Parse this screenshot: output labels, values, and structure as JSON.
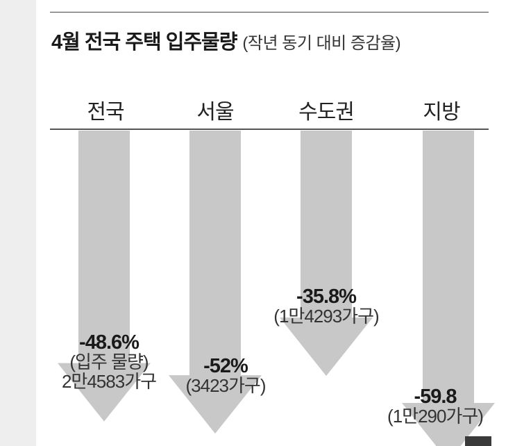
{
  "chart_data": {
    "type": "bar",
    "title": "4월 전국 주택 입주물량",
    "subtitle": "(작년 동기 대비 증감율)",
    "categories": [
      "전국",
      "서울",
      "수도권",
      "지방"
    ],
    "values": [
      -48.6,
      -52,
      -35.8,
      -59.8
    ],
    "value_labels": [
      "-48.6%",
      "-52%",
      "-35.8%",
      "-59.8"
    ],
    "units": [
      "2만4583가구",
      "3423가구",
      "1만4293가구",
      "1만290가구"
    ],
    "unit_labels": [
      "2만4583가구",
      "(3423가구)",
      "(1만4293가구)",
      "(1만290가구)"
    ],
    "first_note": "(입주 물량)",
    "arrow_color": "#c8c8c8",
    "ylim": [
      -60,
      0
    ]
  }
}
